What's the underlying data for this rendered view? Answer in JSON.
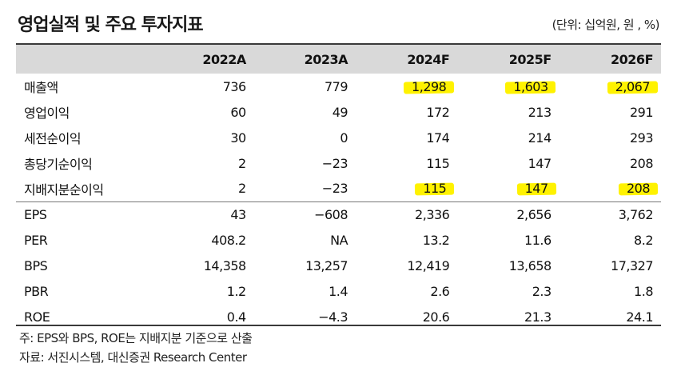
{
  "header": {
    "title": "영업실적 및 주요 투자지표",
    "unit": "(단위: 십억원, 원 , %)"
  },
  "table": {
    "columns": [
      "",
      "2022A",
      "2023A",
      "2024F",
      "2025F",
      "2026F"
    ],
    "rows": [
      {
        "label": "매출액",
        "values": [
          "736",
          "779",
          "1,298",
          "1,603",
          "2,067"
        ],
        "highlight": [
          false,
          false,
          true,
          true,
          true
        ]
      },
      {
        "label": "영업이익",
        "values": [
          "60",
          "49",
          "172",
          "213",
          "291"
        ],
        "highlight": [
          false,
          false,
          false,
          false,
          false
        ]
      },
      {
        "label": "세전순이익",
        "values": [
          "30",
          "0",
          "174",
          "214",
          "293"
        ],
        "highlight": [
          false,
          false,
          false,
          false,
          false
        ]
      },
      {
        "label": "총당기순이익",
        "values": [
          "2",
          "−23",
          "115",
          "147",
          "208"
        ],
        "highlight": [
          false,
          false,
          false,
          false,
          false
        ]
      },
      {
        "label": "지배지분순이익",
        "values": [
          "2",
          "−23",
          "115",
          "147",
          "208"
        ],
        "highlight": [
          false,
          false,
          true,
          true,
          true
        ]
      },
      {
        "label": "EPS",
        "values": [
          "43",
          "−608",
          "2,336",
          "2,656",
          "3,762"
        ],
        "highlight": [
          false,
          false,
          false,
          false,
          false
        ]
      },
      {
        "label": "PER",
        "values": [
          "408.2",
          "NA",
          "13.2",
          "11.6",
          "8.2"
        ],
        "highlight": [
          false,
          false,
          false,
          false,
          false
        ]
      },
      {
        "label": "BPS",
        "values": [
          "14,358",
          "13,257",
          "12,419",
          "13,658",
          "17,327"
        ],
        "highlight": [
          false,
          false,
          false,
          false,
          false
        ]
      },
      {
        "label": "PBR",
        "values": [
          "1.2",
          "1.4",
          "2.6",
          "2.3",
          "1.8"
        ],
        "highlight": [
          false,
          false,
          false,
          false,
          false
        ]
      },
      {
        "label": "ROE",
        "values": [
          "0.4",
          "−4.3",
          "20.6",
          "21.3",
          "24.1"
        ],
        "highlight": [
          false,
          false,
          false,
          false,
          false
        ]
      }
    ]
  },
  "notes": {
    "note": "주: EPS와 BPS, ROE는 지배지분 기준으로 산출",
    "source": "자료: 서진시스템, 대신증권 Research Center"
  },
  "colors": {
    "highlight": "#fff200",
    "header_bg": "#d9d9d9"
  }
}
